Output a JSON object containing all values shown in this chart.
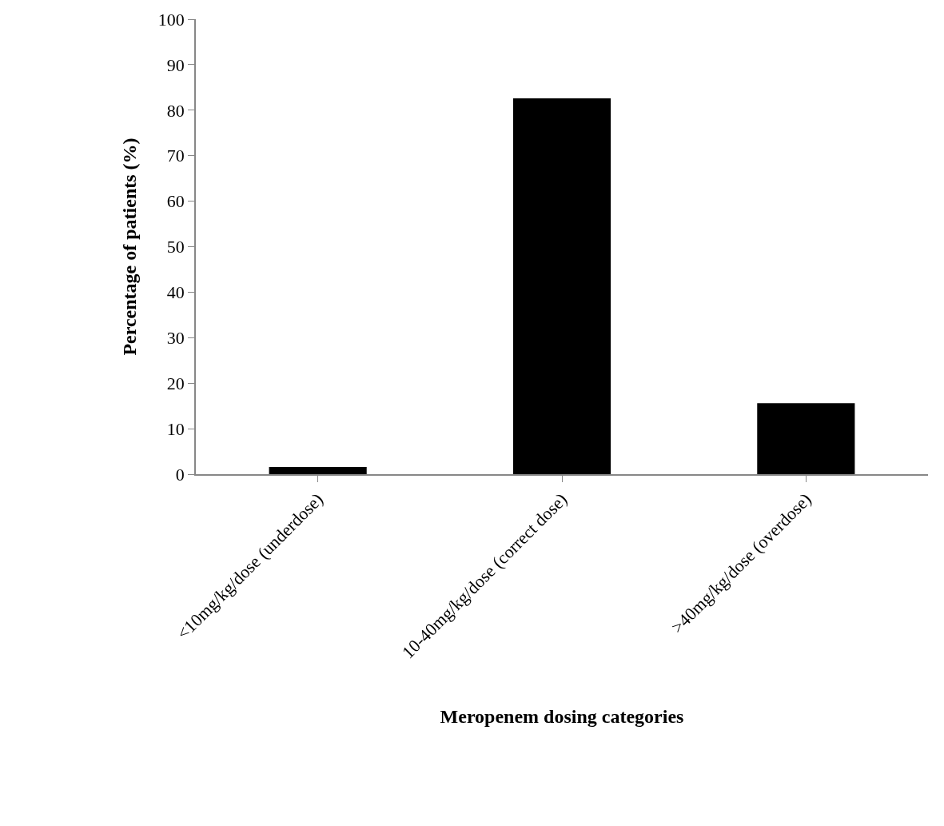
{
  "chart_data": {
    "type": "bar",
    "xlabel": "Meropenem dosing categories",
    "ylabel": "Percentage of patients (%)",
    "categories": [
      "<10mg/kg/dose (underdose)",
      "10-40mg/kg/dose (correct dose)",
      ">40mg/kg/dose (overdose)"
    ],
    "values": [
      1.6,
      82.6,
      15.6
    ],
    "color": "#000000",
    "ylim": [
      0,
      100
    ],
    "yticks": [
      0,
      10,
      20,
      30,
      40,
      50,
      60,
      70,
      80,
      90,
      100
    ]
  }
}
